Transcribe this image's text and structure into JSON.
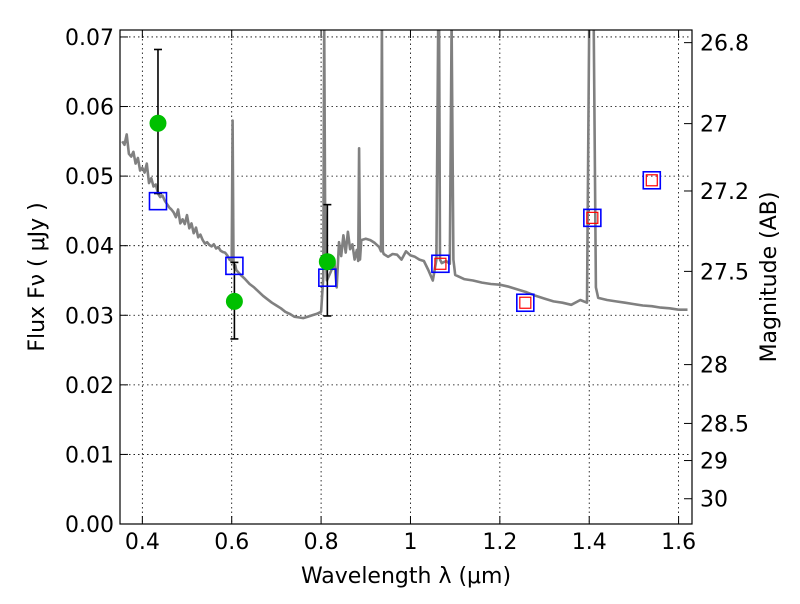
{
  "chart_data": {
    "type": "scatter",
    "xlabel": "Wavelength  λ (μm)",
    "ylabel": "Flux  Fν  ( μJy )",
    "y2label": "Magnitude (AB)",
    "xlim": [
      0.35,
      1.63
    ],
    "ylim": [
      0.0,
      0.071
    ],
    "grid": true,
    "x_ticks": [
      0.4,
      0.6,
      0.8,
      1.0,
      1.2,
      1.4,
      1.6
    ],
    "x_tick_labels": [
      "0.4",
      "0.6",
      "0.8",
      "1",
      "1.2",
      "1.4",
      "1.6"
    ],
    "y_ticks": [
      0.0,
      0.01,
      0.02,
      0.03,
      0.04,
      0.05,
      0.06,
      0.07
    ],
    "y_tick_labels": [
      "0.00",
      "0.01",
      "0.02",
      "0.03",
      "0.04",
      "0.05",
      "0.06",
      "0.07"
    ],
    "y2_ticks": [
      26.8,
      27,
      27.2,
      27.5,
      28,
      28.5,
      29,
      30
    ],
    "y2_tick_labels": [
      "26.8",
      "27",
      "27.2",
      "27.5",
      "28",
      "28.5",
      "29",
      "30"
    ],
    "colors": {
      "model": "#808080",
      "observed": "#00c000",
      "model_phot": "#0000ff",
      "model_phot_inner": "#ff0000"
    },
    "series": [
      {
        "kind": "line",
        "x": [
          0.355,
          0.36,
          0.365,
          0.37,
          0.375,
          0.38,
          0.385,
          0.39,
          0.395,
          0.4,
          0.405,
          0.41,
          0.415,
          0.42,
          0.425,
          0.43,
          0.435,
          0.44,
          0.445,
          0.45,
          0.455,
          0.46,
          0.465,
          0.47,
          0.475,
          0.48,
          0.485,
          0.49,
          0.495,
          0.5,
          0.505,
          0.51,
          0.515,
          0.52,
          0.525,
          0.53,
          0.535,
          0.54,
          0.545,
          0.55,
          0.555,
          0.56,
          0.565,
          0.57,
          0.575,
          0.58,
          0.585,
          0.59,
          0.595,
          0.6,
          0.602,
          0.604,
          0.606,
          0.608,
          0.61,
          0.62,
          0.63,
          0.64,
          0.65,
          0.66,
          0.67,
          0.68,
          0.69,
          0.7,
          0.71,
          0.72,
          0.73,
          0.74,
          0.75,
          0.76,
          0.77,
          0.78,
          0.79,
          0.8,
          0.805,
          0.807,
          0.809,
          0.811,
          0.813,
          0.82,
          0.83,
          0.835,
          0.84,
          0.845,
          0.85,
          0.855,
          0.86,
          0.865,
          0.87,
          0.875,
          0.88,
          0.883,
          0.885,
          0.887,
          0.89,
          0.9,
          0.91,
          0.92,
          0.93,
          0.934,
          0.936,
          0.938,
          0.94,
          0.95,
          0.96,
          0.97,
          0.98,
          0.99,
          1.0,
          1.01,
          1.02,
          1.03,
          1.04,
          1.05,
          1.058,
          1.062,
          1.064,
          1.066,
          1.07,
          1.08,
          1.088,
          1.092,
          1.096,
          1.1,
          1.12,
          1.14,
          1.16,
          1.18,
          1.2,
          1.22,
          1.24,
          1.26,
          1.28,
          1.3,
          1.32,
          1.34,
          1.36,
          1.38,
          1.395,
          1.4,
          1.405,
          1.41,
          1.415,
          1.42,
          1.44,
          1.46,
          1.48,
          1.5,
          1.52,
          1.54,
          1.56,
          1.58,
          1.6,
          1.62
        ],
        "y": [
          0.055,
          0.0545,
          0.056,
          0.0532,
          0.0528,
          0.0535,
          0.0518,
          0.0526,
          0.0508,
          0.0512,
          0.0505,
          0.0518,
          0.049,
          0.0497,
          0.0485,
          0.0488,
          0.0475,
          0.047,
          0.0472,
          0.0465,
          0.046,
          0.0455,
          0.0452,
          0.0448,
          0.0441,
          0.0452,
          0.0432,
          0.0438,
          0.0431,
          0.0444,
          0.0425,
          0.0432,
          0.0418,
          0.0426,
          0.0412,
          0.0416,
          0.0408,
          0.0403,
          0.0405,
          0.0401,
          0.0399,
          0.0402,
          0.0396,
          0.0398,
          0.0393,
          0.0391,
          0.039,
          0.0386,
          0.038,
          0.0378,
          0.058,
          0.0376,
          0.0368,
          0.0372,
          0.0365,
          0.0358,
          0.0352,
          0.0345,
          0.034,
          0.0334,
          0.0328,
          0.0323,
          0.0318,
          0.0314,
          0.031,
          0.0305,
          0.0302,
          0.0298,
          0.0297,
          0.0296,
          0.0298,
          0.03,
          0.0302,
          0.0305,
          0.0355,
          0.072,
          0.045,
          0.038,
          0.035,
          0.036,
          0.0375,
          0.034,
          0.0405,
          0.0385,
          0.0415,
          0.039,
          0.042,
          0.0395,
          0.0402,
          0.038,
          0.0394,
          0.0378,
          0.054,
          0.038,
          0.0408,
          0.041,
          0.0408,
          0.0404,
          0.0398,
          0.0392,
          0.072,
          0.0392,
          0.0388,
          0.0384,
          0.0388,
          0.0387,
          0.038,
          0.0392,
          0.0386,
          0.0384,
          0.038,
          0.0378,
          0.0365,
          0.035,
          0.038,
          0.072,
          0.072,
          0.038,
          0.0375,
          0.0378,
          0.0374,
          0.072,
          0.038,
          0.0358,
          0.0352,
          0.035,
          0.0347,
          0.0345,
          0.0344,
          0.0341,
          0.0337,
          0.0333,
          0.0328,
          0.0324,
          0.032,
          0.0318,
          0.0315,
          0.0322,
          0.0318,
          0.072,
          0.072,
          0.072,
          0.034,
          0.0325,
          0.0322,
          0.032,
          0.0318,
          0.0316,
          0.0314,
          0.0313,
          0.0311,
          0.031,
          0.0308,
          0.0308
        ]
      },
      {
        "kind": "points-with-errors",
        "x": [
          0.435,
          0.606,
          0.814
        ],
        "y": [
          0.0576,
          0.032,
          0.0377
        ],
        "yerr_low": [
          0.0101,
          0.0054,
          0.0078
        ],
        "yerr_high": [
          0.0106,
          0.0056,
          0.0082
        ]
      },
      {
        "kind": "open-squares",
        "x": [
          0.435,
          0.606,
          0.814,
          1.067,
          1.257,
          1.407,
          1.54
        ],
        "y": [
          0.0464,
          0.0371,
          0.0354,
          0.0374,
          0.0318,
          0.044,
          0.0494
        ]
      },
      {
        "kind": "open-squares-inner",
        "x": [
          1.067,
          1.257,
          1.407,
          1.54
        ],
        "y": [
          0.0374,
          0.0318,
          0.044,
          0.0494
        ]
      }
    ]
  }
}
